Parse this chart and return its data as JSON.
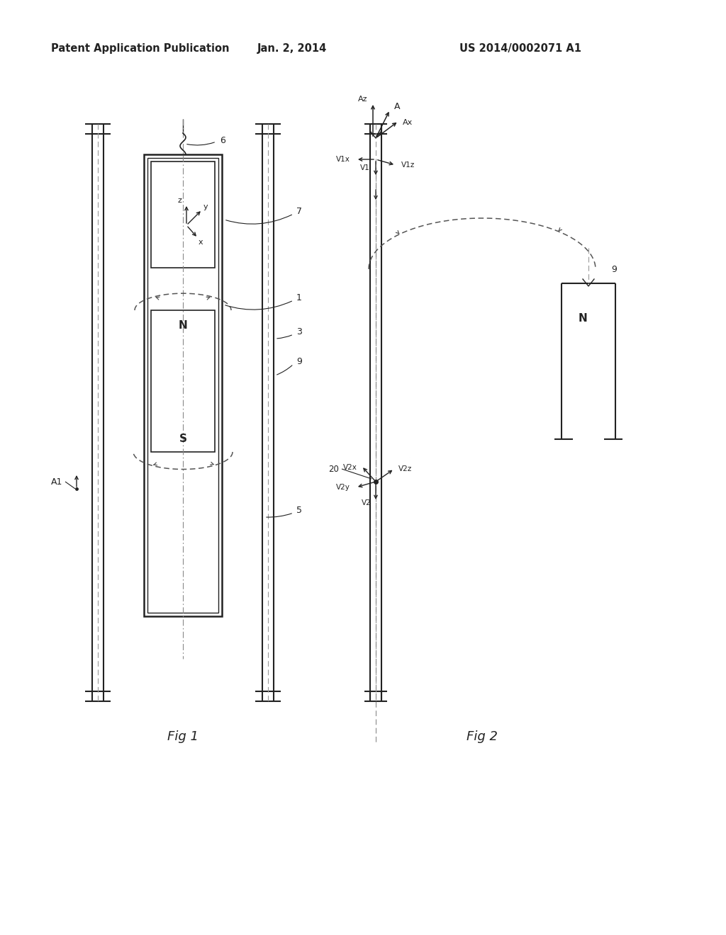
{
  "bg_color": "#ffffff",
  "header_left": "Patent Application Publication",
  "header_center": "Jan. 2, 2014",
  "header_right": "US 2014/0002071 A1",
  "fig1_label": "Fig 1",
  "fig2_label": "Fig 2",
  "lc": "#222222",
  "dc": "#555555"
}
